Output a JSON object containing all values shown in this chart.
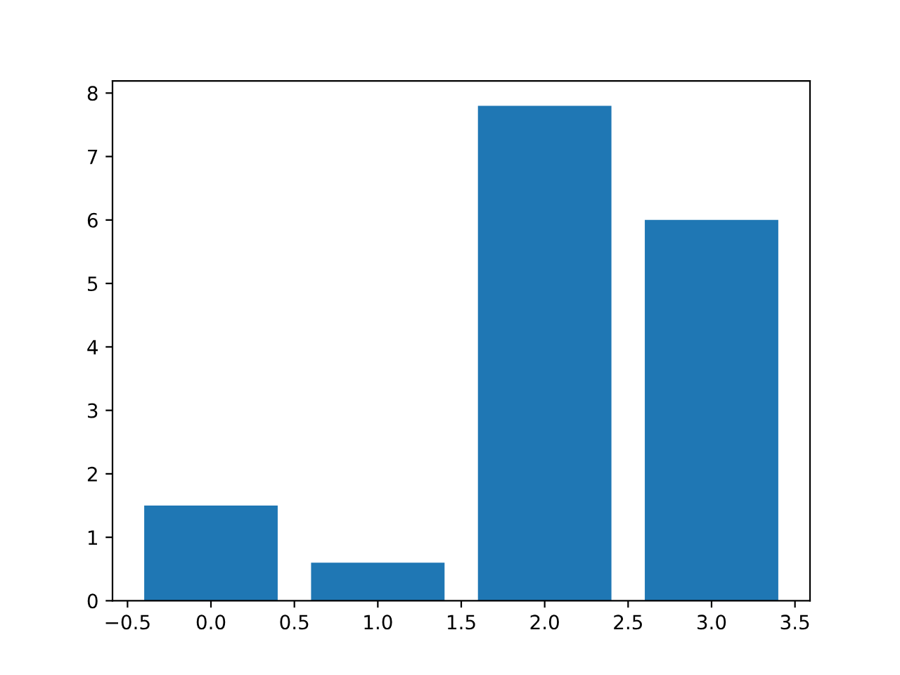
{
  "chart_data": {
    "type": "bar",
    "x": [
      0,
      1,
      2,
      3
    ],
    "values": [
      1.5,
      0.6,
      7.8,
      6.0
    ],
    "color": "#1f77b4",
    "xlim": [
      -0.59,
      3.59
    ],
    "xticks": [
      {
        "value": -0.5,
        "label": "−0.5"
      },
      {
        "value": 0,
        "label": "0.0"
      },
      0.5,
      {
        "value": 1,
        "label": "1.0"
      },
      1.5,
      {
        "value": 2,
        "label": "2.0"
      },
      2.5,
      {
        "value": 3,
        "label": "3.0"
      },
      3.5
    ],
    "ylim": [
      0,
      8.19
    ],
    "yticks": [
      0,
      1,
      2,
      3,
      4,
      5,
      6,
      7,
      8
    ],
    "grid": false
  }
}
